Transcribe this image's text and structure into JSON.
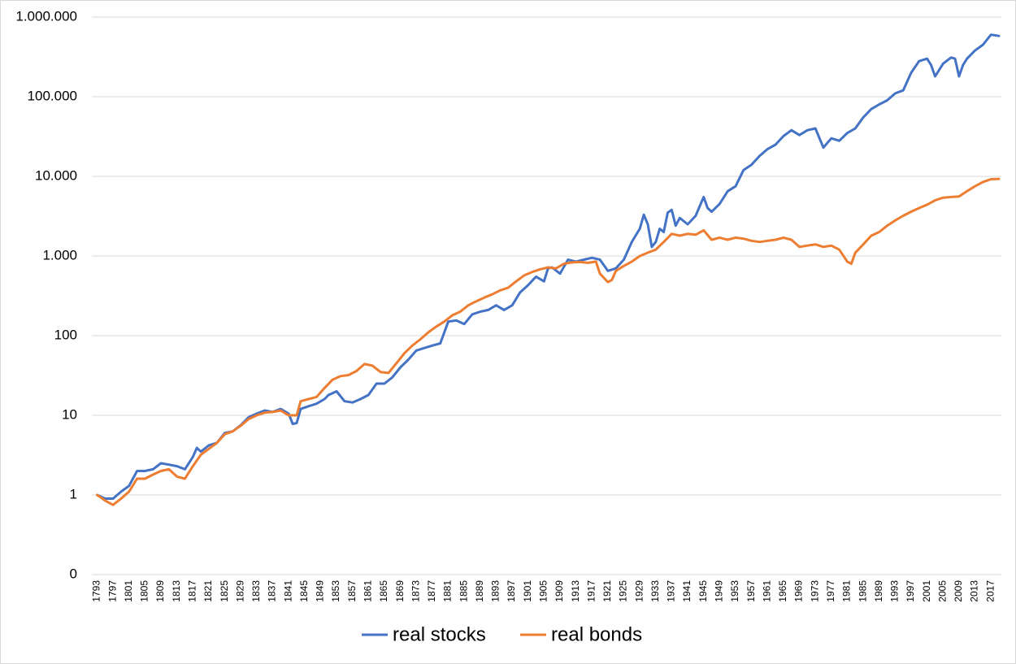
{
  "chart_data": {
    "type": "line",
    "y_scale": "log",
    "ylim": [
      0.1,
      1000000
    ],
    "y_tick_labels": [
      "0",
      "1",
      "10",
      "100",
      "1.000",
      "10.000",
      "100.000",
      "1.000.000"
    ],
    "x_range": [
      1793,
      2019
    ],
    "x_tick_labels": [
      "1793",
      "1797",
      "1801",
      "1805",
      "1809",
      "1813",
      "1817",
      "1821",
      "1825",
      "1829",
      "1833",
      "1837",
      "1841",
      "1845",
      "1849",
      "1853",
      "1857",
      "1861",
      "1865",
      "1869",
      "1873",
      "1877",
      "1881",
      "1885",
      "1889",
      "1893",
      "1897",
      "1901",
      "1905",
      "1909",
      "1913",
      "1917",
      "1921",
      "1925",
      "1929",
      "1933",
      "1937",
      "1941",
      "1945",
      "1949",
      "1953",
      "1957",
      "1961",
      "1965",
      "1969",
      "1973",
      "1977",
      "1981",
      "1985",
      "1989",
      "1993",
      "1997",
      "2001",
      "2005",
      "2009",
      "2013",
      "2017"
    ],
    "grid": true,
    "legend_position": "bottom",
    "series": [
      {
        "name": "real stocks",
        "color": "#4472c4",
        "points": [
          [
            1793,
            1
          ],
          [
            1795,
            0.9
          ],
          [
            1797,
            0.9
          ],
          [
            1799,
            1.1
          ],
          [
            1801,
            1.3
          ],
          [
            1803,
            2
          ],
          [
            1805,
            2
          ],
          [
            1807,
            2.1
          ],
          [
            1809,
            2.5
          ],
          [
            1811,
            2.4
          ],
          [
            1813,
            2.3
          ],
          [
            1815,
            2.1
          ],
          [
            1817,
            3
          ],
          [
            1818,
            3.9
          ],
          [
            1819,
            3.5
          ],
          [
            1821,
            4.2
          ],
          [
            1823,
            4.5
          ],
          [
            1825,
            6
          ],
          [
            1827,
            6.3
          ],
          [
            1829,
            7.5
          ],
          [
            1831,
            9.5
          ],
          [
            1833,
            10.5
          ],
          [
            1835,
            11.5
          ],
          [
            1837,
            11
          ],
          [
            1839,
            12
          ],
          [
            1841,
            10.5
          ],
          [
            1842,
            7.8
          ],
          [
            1843,
            8
          ],
          [
            1844,
            12
          ],
          [
            1846,
            13
          ],
          [
            1848,
            14
          ],
          [
            1850,
            16
          ],
          [
            1851,
            18
          ],
          [
            1853,
            20
          ],
          [
            1855,
            15
          ],
          [
            1857,
            14.5
          ],
          [
            1859,
            16
          ],
          [
            1861,
            18
          ],
          [
            1863,
            25
          ],
          [
            1865,
            25
          ],
          [
            1867,
            30
          ],
          [
            1869,
            40
          ],
          [
            1871,
            50
          ],
          [
            1873,
            65
          ],
          [
            1875,
            70
          ],
          [
            1877,
            75
          ],
          [
            1879,
            80
          ],
          [
            1881,
            150
          ],
          [
            1883,
            155
          ],
          [
            1885,
            140
          ],
          [
            1887,
            185
          ],
          [
            1889,
            200
          ],
          [
            1891,
            210
          ],
          [
            1893,
            240
          ],
          [
            1895,
            210
          ],
          [
            1897,
            240
          ],
          [
            1899,
            350
          ],
          [
            1901,
            430
          ],
          [
            1903,
            550
          ],
          [
            1905,
            480
          ],
          [
            1906,
            700
          ],
          [
            1907,
            720
          ],
          [
            1909,
            600
          ],
          [
            1911,
            900
          ],
          [
            1913,
            850
          ],
          [
            1915,
            900
          ],
          [
            1917,
            950
          ],
          [
            1919,
            900
          ],
          [
            1921,
            650
          ],
          [
            1923,
            700
          ],
          [
            1925,
            900
          ],
          [
            1927,
            1500
          ],
          [
            1929,
            2200
          ],
          [
            1930,
            3300
          ],
          [
            1931,
            2500
          ],
          [
            1932,
            1300
          ],
          [
            1933,
            1500
          ],
          [
            1934,
            2200
          ],
          [
            1935,
            2000
          ],
          [
            1936,
            3500
          ],
          [
            1937,
            3800
          ],
          [
            1938,
            2400
          ],
          [
            1939,
            3000
          ],
          [
            1941,
            2500
          ],
          [
            1943,
            3200
          ],
          [
            1945,
            5500
          ],
          [
            1946,
            4000
          ],
          [
            1947,
            3600
          ],
          [
            1949,
            4500
          ],
          [
            1951,
            6500
          ],
          [
            1953,
            7500
          ],
          [
            1955,
            12000
          ],
          [
            1957,
            14000
          ],
          [
            1959,
            18000
          ],
          [
            1961,
            22000
          ],
          [
            1963,
            25000
          ],
          [
            1965,
            32000
          ],
          [
            1967,
            38000
          ],
          [
            1969,
            33000
          ],
          [
            1971,
            38000
          ],
          [
            1973,
            40000
          ],
          [
            1975,
            23000
          ],
          [
            1977,
            30000
          ],
          [
            1979,
            28000
          ],
          [
            1981,
            35000
          ],
          [
            1983,
            40000
          ],
          [
            1985,
            55000
          ],
          [
            1987,
            70000
          ],
          [
            1989,
            80000
          ],
          [
            1991,
            90000
          ],
          [
            1993,
            110000
          ],
          [
            1995,
            120000
          ],
          [
            1997,
            200000
          ],
          [
            1999,
            280000
          ],
          [
            2001,
            300000
          ],
          [
            2002,
            250000
          ],
          [
            2003,
            180000
          ],
          [
            2005,
            260000
          ],
          [
            2007,
            310000
          ],
          [
            2008,
            300000
          ],
          [
            2009,
            180000
          ],
          [
            2010,
            250000
          ],
          [
            2011,
            300000
          ],
          [
            2013,
            380000
          ],
          [
            2015,
            450000
          ],
          [
            2017,
            600000
          ],
          [
            2019,
            580000
          ]
        ]
      },
      {
        "name": "real bonds",
        "color": "#ed7d31",
        "points": [
          [
            1793,
            1
          ],
          [
            1795,
            0.85
          ],
          [
            1797,
            0.75
          ],
          [
            1799,
            0.9
          ],
          [
            1801,
            1.1
          ],
          [
            1803,
            1.6
          ],
          [
            1805,
            1.6
          ],
          [
            1807,
            1.8
          ],
          [
            1809,
            2
          ],
          [
            1811,
            2.1
          ],
          [
            1813,
            1.7
          ],
          [
            1815,
            1.6
          ],
          [
            1817,
            2.3
          ],
          [
            1819,
            3.2
          ],
          [
            1821,
            3.8
          ],
          [
            1823,
            4.5
          ],
          [
            1825,
            5.8
          ],
          [
            1827,
            6.3
          ],
          [
            1829,
            7.4
          ],
          [
            1831,
            9
          ],
          [
            1833,
            10
          ],
          [
            1835,
            10.8
          ],
          [
            1837,
            11
          ],
          [
            1839,
            11.5
          ],
          [
            1841,
            10
          ],
          [
            1843,
            10
          ],
          [
            1844,
            15
          ],
          [
            1846,
            16
          ],
          [
            1848,
            17
          ],
          [
            1850,
            22
          ],
          [
            1852,
            28
          ],
          [
            1854,
            31
          ],
          [
            1856,
            32
          ],
          [
            1858,
            36
          ],
          [
            1860,
            44
          ],
          [
            1862,
            42
          ],
          [
            1864,
            35
          ],
          [
            1866,
            34
          ],
          [
            1868,
            45
          ],
          [
            1870,
            60
          ],
          [
            1872,
            75
          ],
          [
            1874,
            90
          ],
          [
            1876,
            110
          ],
          [
            1878,
            130
          ],
          [
            1880,
            150
          ],
          [
            1882,
            180
          ],
          [
            1884,
            200
          ],
          [
            1886,
            240
          ],
          [
            1888,
            270
          ],
          [
            1890,
            300
          ],
          [
            1892,
            330
          ],
          [
            1894,
            370
          ],
          [
            1896,
            400
          ],
          [
            1898,
            480
          ],
          [
            1900,
            570
          ],
          [
            1902,
            630
          ],
          [
            1904,
            680
          ],
          [
            1906,
            720
          ],
          [
            1908,
            700
          ],
          [
            1910,
            800
          ],
          [
            1912,
            830
          ],
          [
            1914,
            840
          ],
          [
            1916,
            820
          ],
          [
            1918,
            850
          ],
          [
            1919,
            600
          ],
          [
            1921,
            470
          ],
          [
            1922,
            500
          ],
          [
            1923,
            650
          ],
          [
            1925,
            750
          ],
          [
            1927,
            850
          ],
          [
            1929,
            1000
          ],
          [
            1931,
            1100
          ],
          [
            1933,
            1200
          ],
          [
            1935,
            1500
          ],
          [
            1937,
            1900
          ],
          [
            1939,
            1800
          ],
          [
            1941,
            1900
          ],
          [
            1943,
            1850
          ],
          [
            1945,
            2100
          ],
          [
            1947,
            1600
          ],
          [
            1949,
            1700
          ],
          [
            1951,
            1600
          ],
          [
            1953,
            1700
          ],
          [
            1955,
            1650
          ],
          [
            1957,
            1550
          ],
          [
            1959,
            1500
          ],
          [
            1961,
            1550
          ],
          [
            1963,
            1600
          ],
          [
            1965,
            1700
          ],
          [
            1967,
            1600
          ],
          [
            1969,
            1300
          ],
          [
            1971,
            1350
          ],
          [
            1973,
            1400
          ],
          [
            1975,
            1300
          ],
          [
            1977,
            1350
          ],
          [
            1979,
            1200
          ],
          [
            1981,
            850
          ],
          [
            1982,
            800
          ],
          [
            1983,
            1100
          ],
          [
            1985,
            1400
          ],
          [
            1987,
            1800
          ],
          [
            1989,
            2000
          ],
          [
            1991,
            2400
          ],
          [
            1993,
            2800
          ],
          [
            1995,
            3200
          ],
          [
            1997,
            3600
          ],
          [
            1999,
            4000
          ],
          [
            2001,
            4400
          ],
          [
            2003,
            5000
          ],
          [
            2005,
            5400
          ],
          [
            2007,
            5500
          ],
          [
            2009,
            5600
          ],
          [
            2011,
            6500
          ],
          [
            2013,
            7500
          ],
          [
            2015,
            8500
          ],
          [
            2017,
            9200
          ],
          [
            2019,
            9300
          ]
        ]
      }
    ]
  }
}
